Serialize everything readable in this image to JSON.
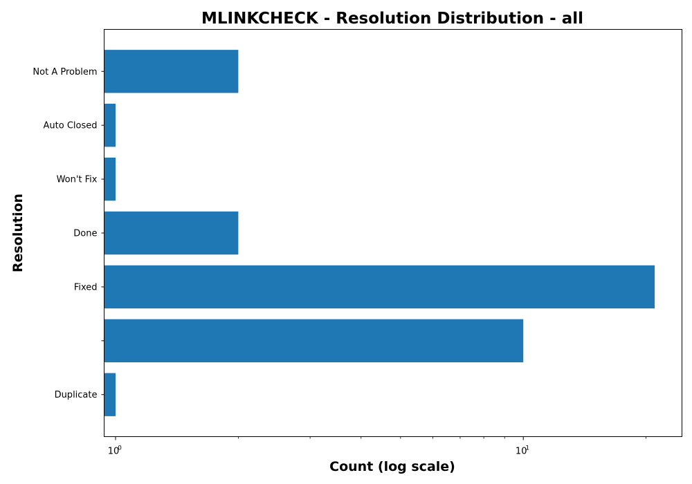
{
  "chart_data": {
    "type": "bar",
    "orientation": "horizontal",
    "title": "MLINKCHECK - Resolution Distribution - all",
    "xlabel": "Count (log scale)",
    "ylabel": "Resolution",
    "xscale": "log",
    "xlim": [
      0.9375,
      24.5
    ],
    "x_ticks": [
      {
        "value": 1,
        "base": "10",
        "exp": "0"
      },
      {
        "value": 10,
        "base": "10",
        "exp": "1"
      }
    ],
    "categories": [
      "Not A Problem",
      "Auto Closed",
      "Won't Fix",
      "Done",
      "Fixed",
      "",
      "Duplicate"
    ],
    "values": [
      2,
      1,
      1,
      2,
      21,
      10,
      1
    ],
    "bar_color": "#1f77b4",
    "grid": false,
    "legend": "none"
  }
}
